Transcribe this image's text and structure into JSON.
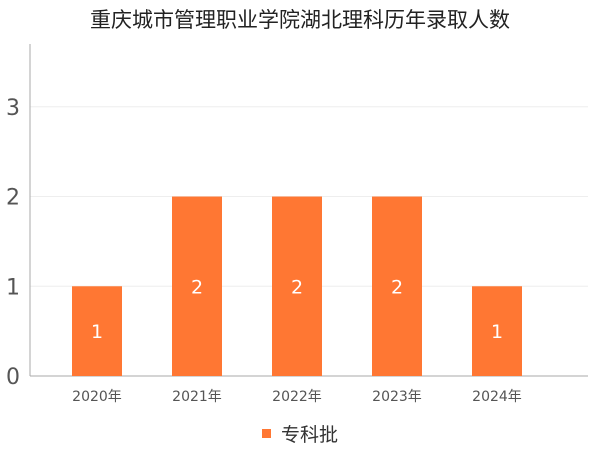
{
  "colors": {
    "bar": "#ff7733",
    "axis": "#aaaaaa",
    "grid": "#eeeeee",
    "text": "#555555"
  },
  "chart_data": {
    "type": "bar",
    "title": "重庆城市管理职业学院湖北理科历年录取人数",
    "categories": [
      "2020年",
      "2021年",
      "2022年",
      "2023年",
      "2024年"
    ],
    "series": [
      {
        "name": "专科批",
        "values": [
          1,
          2,
          2,
          2,
          1
        ]
      }
    ],
    "y_ticks": [
      "0",
      "1",
      "2",
      "3"
    ],
    "ylim": [
      0,
      3.7
    ],
    "grid": true,
    "legend_position": "bottom"
  }
}
